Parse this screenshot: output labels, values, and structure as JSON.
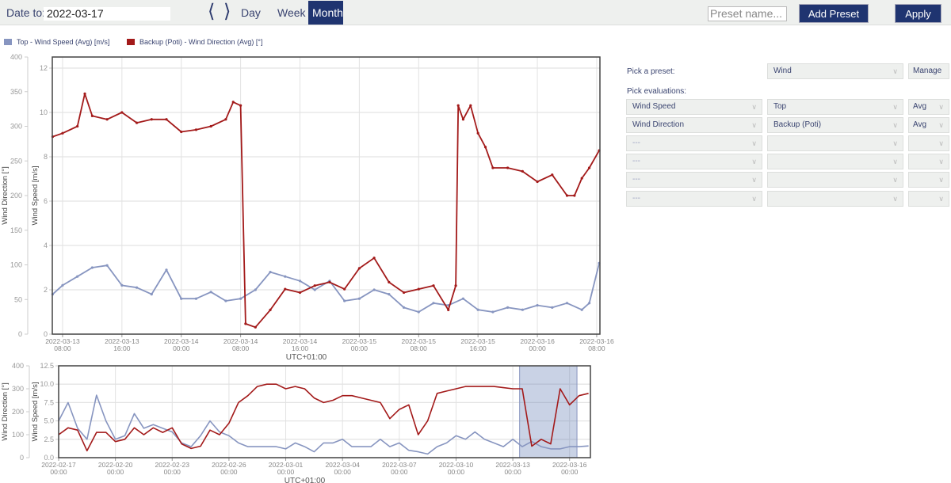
{
  "toolbar": {
    "date_label": "Date to:",
    "date_value": "2022-03-17",
    "prev_icon": "chevron-left-icon",
    "next_icon": "chevron-right-icon",
    "ranges": [
      "Day",
      "Week",
      "Month"
    ],
    "active_range": "Month",
    "preset_placeholder": "Preset name...",
    "add_preset": "Add Preset",
    "apply": "Apply"
  },
  "legend": [
    {
      "label": "Top - Wind Speed (Avg) [m/s]",
      "color": "#8795c0"
    },
    {
      "label": "Backup (Poti) - Wind Direction (Avg) [°]",
      "color": "#a31a1a"
    }
  ],
  "panel": {
    "preset_label": "Pick a preset:",
    "preset_value": "Wind",
    "manage": "Manage",
    "evaluations_label": "Pick evaluations:",
    "rows": [
      [
        "Wind Speed",
        "Top",
        "Avg"
      ],
      [
        "Wind Direction",
        "Backup (Poti)",
        "Avg"
      ],
      [
        "---",
        "",
        ""
      ],
      [
        "---",
        "",
        ""
      ],
      [
        "---",
        "",
        ""
      ],
      [
        "---",
        "",
        ""
      ]
    ]
  },
  "chart_data": [
    {
      "type": "line",
      "xlabel": "UTC+01:00",
      "ylabel_left": "Wind Direction [°]",
      "ylabel_inner": "Wind Speed [m/s]",
      "xlim": [
        "2022-03-13T06:37",
        "2022-03-16T08:26"
      ],
      "ylim_direction": [
        0,
        400
      ],
      "ylim_speed": [
        0,
        12.5
      ],
      "grid": true,
      "legend": "top-left",
      "yticks_direction": [
        "0",
        "50",
        "100",
        "150",
        "200",
        "250",
        "300",
        "350",
        "400"
      ],
      "yticks_speed": [
        "0",
        "2",
        "4",
        "6",
        "8",
        "10",
        "12"
      ],
      "xticks": [
        [
          "2022-03-13",
          "08:00"
        ],
        [
          "2022-03-13",
          "16:00"
        ],
        [
          "2022-03-14",
          "00:00"
        ],
        [
          "2022-03-14",
          "08:00"
        ],
        [
          "2022-03-14",
          "16:00"
        ],
        [
          "2022-03-15",
          "00:00"
        ],
        [
          "2022-03-15",
          "08:00"
        ],
        [
          "2022-03-15",
          "16:00"
        ],
        [
          "2022-03-16",
          "00:00"
        ],
        [
          "2022-03-16",
          "08:00"
        ]
      ],
      "series": [
        {
          "name": "Top - Wind Speed (Avg) [m/s]",
          "axis": "speed",
          "color": "#8795c0",
          "x": [
            "2022-03-13T06:40",
            "2022-03-13T08:00",
            "2022-03-13T10:00",
            "2022-03-13T12:00",
            "2022-03-13T14:00",
            "2022-03-13T16:00",
            "2022-03-13T18:00",
            "2022-03-13T20:00",
            "2022-03-13T22:00",
            "2022-03-14T00:00",
            "2022-03-14T02:00",
            "2022-03-14T04:00",
            "2022-03-14T06:00",
            "2022-03-14T08:00",
            "2022-03-14T10:00",
            "2022-03-14T12:00",
            "2022-03-14T14:00",
            "2022-03-14T16:00",
            "2022-03-14T18:00",
            "2022-03-14T20:00",
            "2022-03-14T22:00",
            "2022-03-15T00:00",
            "2022-03-15T02:00",
            "2022-03-15T04:00",
            "2022-03-15T06:00",
            "2022-03-15T08:00",
            "2022-03-15T10:00",
            "2022-03-15T12:00",
            "2022-03-15T14:00",
            "2022-03-15T16:00",
            "2022-03-15T18:00",
            "2022-03-15T20:00",
            "2022-03-15T22:00",
            "2022-03-16T00:00",
            "2022-03-16T02:00",
            "2022-03-16T04:00",
            "2022-03-16T06:00",
            "2022-03-16T07:00",
            "2022-03-16T08:20"
          ],
          "y": [
            1.8,
            2.2,
            2.6,
            3.0,
            3.1,
            2.2,
            2.1,
            1.8,
            2.9,
            1.6,
            1.6,
            1.9,
            1.5,
            1.6,
            2.0,
            2.8,
            2.6,
            2.4,
            2.0,
            2.4,
            1.5,
            1.6,
            2.0,
            1.8,
            1.2,
            1.0,
            1.4,
            1.3,
            1.6,
            1.1,
            1.0,
            1.2,
            1.1,
            1.3,
            1.2,
            1.4,
            1.1,
            1.4,
            3.2
          ]
        },
        {
          "name": "Backup (Poti) - Wind Direction (Avg) [°]",
          "axis": "direction",
          "color": "#a31a1a",
          "x": [
            "2022-03-13T06:40",
            "2022-03-13T08:00",
            "2022-03-13T10:00",
            "2022-03-13T11:00",
            "2022-03-13T12:00",
            "2022-03-13T14:00",
            "2022-03-13T16:00",
            "2022-03-13T18:00",
            "2022-03-13T20:00",
            "2022-03-13T22:00",
            "2022-03-14T00:00",
            "2022-03-14T02:00",
            "2022-03-14T04:00",
            "2022-03-14T06:00",
            "2022-03-14T07:00",
            "2022-03-14T08:00",
            "2022-03-14T08:40",
            "2022-03-14T10:00",
            "2022-03-14T12:00",
            "2022-03-14T14:00",
            "2022-03-14T16:00",
            "2022-03-14T18:00",
            "2022-03-14T20:00",
            "2022-03-14T22:00",
            "2022-03-15T00:00",
            "2022-03-15T02:00",
            "2022-03-15T04:00",
            "2022-03-15T06:00",
            "2022-03-15T08:00",
            "2022-03-15T10:00",
            "2022-03-15T12:00",
            "2022-03-15T13:00",
            "2022-03-15T13:20",
            "2022-03-15T14:00",
            "2022-03-15T15:00",
            "2022-03-15T16:00",
            "2022-03-15T17:00",
            "2022-03-15T18:00",
            "2022-03-15T20:00",
            "2022-03-15T22:00",
            "2022-03-16T00:00",
            "2022-03-16T02:00",
            "2022-03-16T04:00",
            "2022-03-16T05:00",
            "2022-03-16T06:00",
            "2022-03-16T07:00",
            "2022-03-16T08:20"
          ],
          "y": [
            285,
            290,
            300,
            347,
            315,
            310,
            320,
            305,
            310,
            310,
            292,
            295,
            300,
            310,
            335,
            330,
            15,
            10,
            35,
            65,
            60,
            70,
            75,
            65,
            95,
            110,
            75,
            60,
            65,
            70,
            35,
            70,
            330,
            310,
            330,
            290,
            270,
            240,
            240,
            235,
            220,
            230,
            200,
            200,
            225,
            240,
            265
          ]
        }
      ]
    },
    {
      "type": "line",
      "xlabel": "UTC+01:00",
      "ylabel_left": "Wind Direction [°]",
      "ylabel_inner": "Wind Speed [m/s]",
      "xlim": [
        "2022-02-17T00:00",
        "2022-03-17T02:24"
      ],
      "ylim_direction": [
        0,
        400
      ],
      "ylim_speed": [
        0,
        12.5
      ],
      "grid": true,
      "selection": [
        "2022-03-13T08:37",
        "2022-03-16T09:22"
      ],
      "yticks_direction": [
        "0",
        "100",
        "200",
        "300",
        "400"
      ],
      "yticks_speed": [
        "0.0",
        "2.5",
        "5.0",
        "7.5",
        "10.0",
        "12.5"
      ],
      "xticks": [
        [
          "2022-02-17",
          "00:00"
        ],
        [
          "2022-02-20",
          "00:00"
        ],
        [
          "2022-02-23",
          "00:00"
        ],
        [
          "2022-02-26",
          "00:00"
        ],
        [
          "2022-03-01",
          "00:00"
        ],
        [
          "2022-03-04",
          "00:00"
        ],
        [
          "2022-03-07",
          "00:00"
        ],
        [
          "2022-03-10",
          "00:00"
        ],
        [
          "2022-03-13",
          "00:00"
        ],
        [
          "2022-03-16",
          "00:00"
        ]
      ],
      "series": [
        {
          "name": "Top - Wind Speed (Avg) [m/s]",
          "axis": "speed",
          "color": "#8795c0",
          "y_start": "2022-02-17T00:00",
          "step_hours": 12,
          "y": [
            5,
            7.5,
            4,
            2.5,
            8.5,
            5,
            2.5,
            3,
            6,
            4,
            4.5,
            4,
            3.5,
            2,
            1.5,
            3,
            5,
            3.5,
            3,
            2,
            1.5,
            1.5,
            1.5,
            1.5,
            1.2,
            2,
            1.5,
            0.8,
            2,
            2,
            2.5,
            1.5,
            1.5,
            1.5,
            2.5,
            1.5,
            2,
            1,
            0.8,
            0.5,
            1.5,
            2,
            3,
            2.5,
            3.5,
            2.5,
            2,
            1.5,
            2.5,
            1.5,
            2.2,
            1.5,
            1.2,
            1.2,
            1.5,
            1.5,
            1.6
          ]
        },
        {
          "name": "Backup (Poti) - Wind Direction (Avg) [°]",
          "axis": "direction",
          "color": "#a31a1a",
          "y_start": "2022-02-17T00:00",
          "step_hours": 12,
          "y": [
            100,
            130,
            120,
            30,
            110,
            110,
            70,
            80,
            130,
            100,
            130,
            110,
            130,
            60,
            40,
            50,
            120,
            100,
            150,
            240,
            270,
            310,
            320,
            320,
            300,
            310,
            300,
            260,
            240,
            250,
            270,
            270,
            260,
            250,
            240,
            170,
            210,
            230,
            100,
            160,
            280,
            290,
            300,
            310,
            310,
            310,
            310,
            305,
            300,
            300,
            50,
            80,
            60,
            300,
            230,
            270,
            280
          ]
        }
      ]
    }
  ]
}
